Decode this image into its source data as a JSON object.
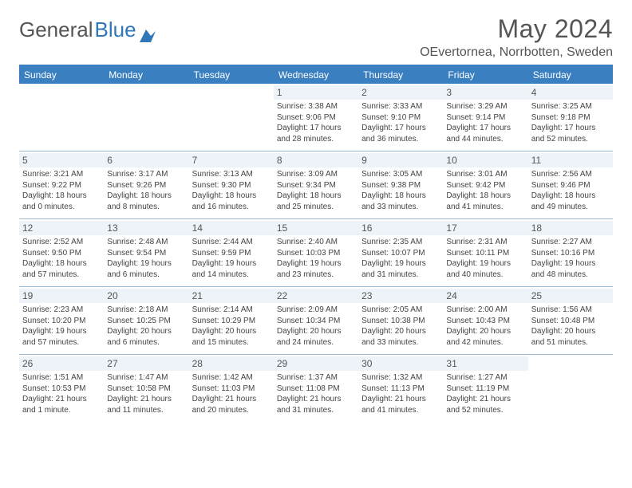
{
  "brand": {
    "name1": "General",
    "name2": "Blue"
  },
  "title": "May 2024",
  "location": "OEvertornea, Norrbotten, Sweden",
  "day_headers": [
    "Sunday",
    "Monday",
    "Tuesday",
    "Wednesday",
    "Thursday",
    "Friday",
    "Saturday"
  ],
  "colors": {
    "header_bg": "#3a7fc0",
    "header_text": "#ffffff",
    "daynum_bg": "#edf3f8",
    "border": "#9ab8d2",
    "text": "#444444",
    "title_text": "#555555"
  },
  "typography": {
    "month_fontsize": 32,
    "location_fontsize": 16,
    "dayheader_fontsize": 12,
    "daynum_fontsize": 12,
    "info_fontsize": 10
  },
  "weeks": [
    [
      null,
      null,
      null,
      {
        "n": "1",
        "sr": "Sunrise: 3:38 AM",
        "ss": "Sunset: 9:06 PM",
        "d1": "Daylight: 17 hours",
        "d2": "and 28 minutes."
      },
      {
        "n": "2",
        "sr": "Sunrise: 3:33 AM",
        "ss": "Sunset: 9:10 PM",
        "d1": "Daylight: 17 hours",
        "d2": "and 36 minutes."
      },
      {
        "n": "3",
        "sr": "Sunrise: 3:29 AM",
        "ss": "Sunset: 9:14 PM",
        "d1": "Daylight: 17 hours",
        "d2": "and 44 minutes."
      },
      {
        "n": "4",
        "sr": "Sunrise: 3:25 AM",
        "ss": "Sunset: 9:18 PM",
        "d1": "Daylight: 17 hours",
        "d2": "and 52 minutes."
      }
    ],
    [
      {
        "n": "5",
        "sr": "Sunrise: 3:21 AM",
        "ss": "Sunset: 9:22 PM",
        "d1": "Daylight: 18 hours",
        "d2": "and 0 minutes."
      },
      {
        "n": "6",
        "sr": "Sunrise: 3:17 AM",
        "ss": "Sunset: 9:26 PM",
        "d1": "Daylight: 18 hours",
        "d2": "and 8 minutes."
      },
      {
        "n": "7",
        "sr": "Sunrise: 3:13 AM",
        "ss": "Sunset: 9:30 PM",
        "d1": "Daylight: 18 hours",
        "d2": "and 16 minutes."
      },
      {
        "n": "8",
        "sr": "Sunrise: 3:09 AM",
        "ss": "Sunset: 9:34 PM",
        "d1": "Daylight: 18 hours",
        "d2": "and 25 minutes."
      },
      {
        "n": "9",
        "sr": "Sunrise: 3:05 AM",
        "ss": "Sunset: 9:38 PM",
        "d1": "Daylight: 18 hours",
        "d2": "and 33 minutes."
      },
      {
        "n": "10",
        "sr": "Sunrise: 3:01 AM",
        "ss": "Sunset: 9:42 PM",
        "d1": "Daylight: 18 hours",
        "d2": "and 41 minutes."
      },
      {
        "n": "11",
        "sr": "Sunrise: 2:56 AM",
        "ss": "Sunset: 9:46 PM",
        "d1": "Daylight: 18 hours",
        "d2": "and 49 minutes."
      }
    ],
    [
      {
        "n": "12",
        "sr": "Sunrise: 2:52 AM",
        "ss": "Sunset: 9:50 PM",
        "d1": "Daylight: 18 hours",
        "d2": "and 57 minutes."
      },
      {
        "n": "13",
        "sr": "Sunrise: 2:48 AM",
        "ss": "Sunset: 9:54 PM",
        "d1": "Daylight: 19 hours",
        "d2": "and 6 minutes."
      },
      {
        "n": "14",
        "sr": "Sunrise: 2:44 AM",
        "ss": "Sunset: 9:59 PM",
        "d1": "Daylight: 19 hours",
        "d2": "and 14 minutes."
      },
      {
        "n": "15",
        "sr": "Sunrise: 2:40 AM",
        "ss": "Sunset: 10:03 PM",
        "d1": "Daylight: 19 hours",
        "d2": "and 23 minutes."
      },
      {
        "n": "16",
        "sr": "Sunrise: 2:35 AM",
        "ss": "Sunset: 10:07 PM",
        "d1": "Daylight: 19 hours",
        "d2": "and 31 minutes."
      },
      {
        "n": "17",
        "sr": "Sunrise: 2:31 AM",
        "ss": "Sunset: 10:11 PM",
        "d1": "Daylight: 19 hours",
        "d2": "and 40 minutes."
      },
      {
        "n": "18",
        "sr": "Sunrise: 2:27 AM",
        "ss": "Sunset: 10:16 PM",
        "d1": "Daylight: 19 hours",
        "d2": "and 48 minutes."
      }
    ],
    [
      {
        "n": "19",
        "sr": "Sunrise: 2:23 AM",
        "ss": "Sunset: 10:20 PM",
        "d1": "Daylight: 19 hours",
        "d2": "and 57 minutes."
      },
      {
        "n": "20",
        "sr": "Sunrise: 2:18 AM",
        "ss": "Sunset: 10:25 PM",
        "d1": "Daylight: 20 hours",
        "d2": "and 6 minutes."
      },
      {
        "n": "21",
        "sr": "Sunrise: 2:14 AM",
        "ss": "Sunset: 10:29 PM",
        "d1": "Daylight: 20 hours",
        "d2": "and 15 minutes."
      },
      {
        "n": "22",
        "sr": "Sunrise: 2:09 AM",
        "ss": "Sunset: 10:34 PM",
        "d1": "Daylight: 20 hours",
        "d2": "and 24 minutes."
      },
      {
        "n": "23",
        "sr": "Sunrise: 2:05 AM",
        "ss": "Sunset: 10:38 PM",
        "d1": "Daylight: 20 hours",
        "d2": "and 33 minutes."
      },
      {
        "n": "24",
        "sr": "Sunrise: 2:00 AM",
        "ss": "Sunset: 10:43 PM",
        "d1": "Daylight: 20 hours",
        "d2": "and 42 minutes."
      },
      {
        "n": "25",
        "sr": "Sunrise: 1:56 AM",
        "ss": "Sunset: 10:48 PM",
        "d1": "Daylight: 20 hours",
        "d2": "and 51 minutes."
      }
    ],
    [
      {
        "n": "26",
        "sr": "Sunrise: 1:51 AM",
        "ss": "Sunset: 10:53 PM",
        "d1": "Daylight: 21 hours",
        "d2": "and 1 minute."
      },
      {
        "n": "27",
        "sr": "Sunrise: 1:47 AM",
        "ss": "Sunset: 10:58 PM",
        "d1": "Daylight: 21 hours",
        "d2": "and 11 minutes."
      },
      {
        "n": "28",
        "sr": "Sunrise: 1:42 AM",
        "ss": "Sunset: 11:03 PM",
        "d1": "Daylight: 21 hours",
        "d2": "and 20 minutes."
      },
      {
        "n": "29",
        "sr": "Sunrise: 1:37 AM",
        "ss": "Sunset: 11:08 PM",
        "d1": "Daylight: 21 hours",
        "d2": "and 31 minutes."
      },
      {
        "n": "30",
        "sr": "Sunrise: 1:32 AM",
        "ss": "Sunset: 11:13 PM",
        "d1": "Daylight: 21 hours",
        "d2": "and 41 minutes."
      },
      {
        "n": "31",
        "sr": "Sunrise: 1:27 AM",
        "ss": "Sunset: 11:19 PM",
        "d1": "Daylight: 21 hours",
        "d2": "and 52 minutes."
      },
      null
    ]
  ]
}
